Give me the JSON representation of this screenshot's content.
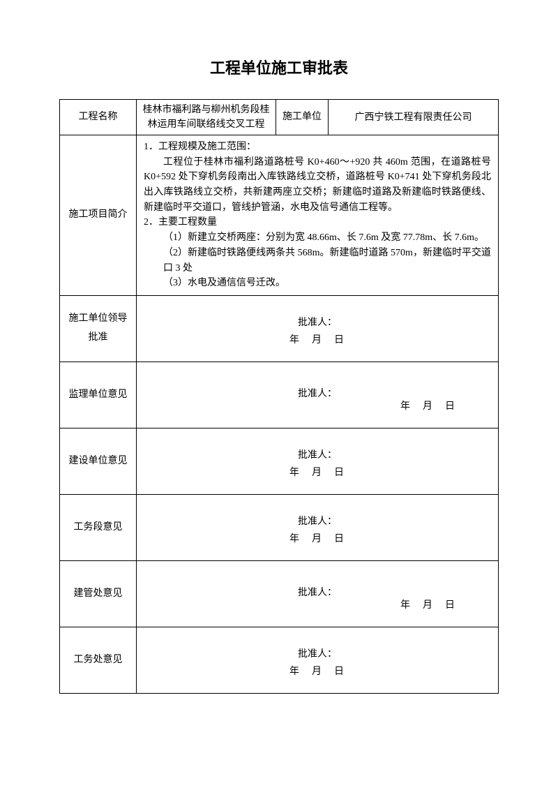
{
  "title": "工程单位施工审批表",
  "header": {
    "project_name_label": "工程名称",
    "project_name_value": "桂林市福利路与柳州机务段桂林运用车间联络线交叉工程",
    "construction_unit_label": "施工单位",
    "construction_unit_value": "广西宁铁工程有限责任公司"
  },
  "description": {
    "label": "施工项目简介",
    "line1": "1．工程规模及施工范围：",
    "line2": "工程位于桂林市福利路道路桩号 K0+460～+920 共 460m 范围，在道路桩号 K0+592 处下穿机务段南出入库铁路线立交桥，道路桩号 K0+741 处下穿机务段北出入库铁路线立交桥，共新建两座立交桥；新建临时道路及新建临时铁路便线、新建临时平交道口，管线护管涵，水电及信号通信工程等。",
    "line3": "2．主要工程数量",
    "line4": "（1）新建立交桥两座：分别为宽 48.66m、长 7.6m 及宽 77.78m、长 7.6m。",
    "line5": "（2）新建临时铁路便线两条共 568m。新建临时道路 570m，新建临时平交道口 3 处",
    "line6": "（3）水电及通信信号迁改。"
  },
  "approvals": [
    {
      "label": "施工单位领导批准",
      "approver_label": "批准人：",
      "date_label": "年　月　日",
      "date_align": "center"
    },
    {
      "label": "监理单位意见",
      "approver_label": "批准人：",
      "date_label": "年　月　日",
      "date_align": "right"
    },
    {
      "label": "建设单位意见",
      "approver_label": "批准人：",
      "date_label": "年　月　日",
      "date_align": "center"
    },
    {
      "label": "工务段意见",
      "approver_label": "批准人：",
      "date_label": "年　月　日",
      "date_align": "center"
    },
    {
      "label": "建管处意见",
      "approver_label": "批准人：",
      "date_label": "年　月　日",
      "date_align": "right"
    },
    {
      "label": "工务处意见",
      "approver_label": "批准人：",
      "date_label": "年　月　日",
      "date_align": "center"
    }
  ],
  "colors": {
    "background": "#ffffff",
    "text": "#000000",
    "border": "#000000"
  },
  "typography": {
    "title_fontsize": 22,
    "body_fontsize": 14,
    "title_family": "SimHei",
    "body_family": "SimSun"
  }
}
